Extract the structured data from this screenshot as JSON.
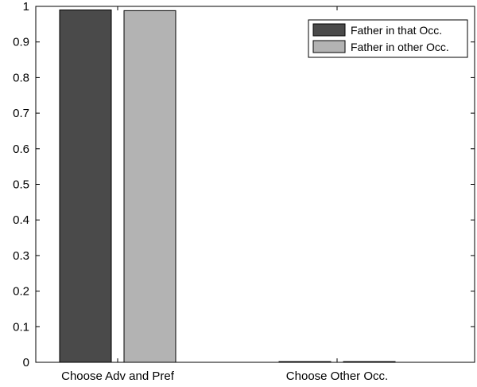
{
  "chart_data": {
    "type": "bar",
    "categories": [
      "Choose Adv and Pref",
      "Choose Other Occ."
    ],
    "series": [
      {
        "name": "Father in that Occ.",
        "values": [
          0.99,
          0.002
        ]
      },
      {
        "name": "Father in other Occ.",
        "values": [
          0.988,
          0.002
        ]
      }
    ],
    "ylim": [
      0,
      1
    ],
    "yticks": [
      0,
      0.1,
      0.2,
      0.3,
      0.4,
      0.5,
      0.6,
      0.7,
      0.8,
      0.9,
      1
    ],
    "ytick_labels": [
      "0",
      "0.1",
      "0.2",
      "0.3",
      "0.4",
      "0.5",
      "0.6",
      "0.7",
      "0.8",
      "0.9",
      "1"
    ],
    "grid": false,
    "legend_position": "top-right",
    "colors": [
      "#4a4a4a",
      "#b3b3b3"
    ]
  }
}
